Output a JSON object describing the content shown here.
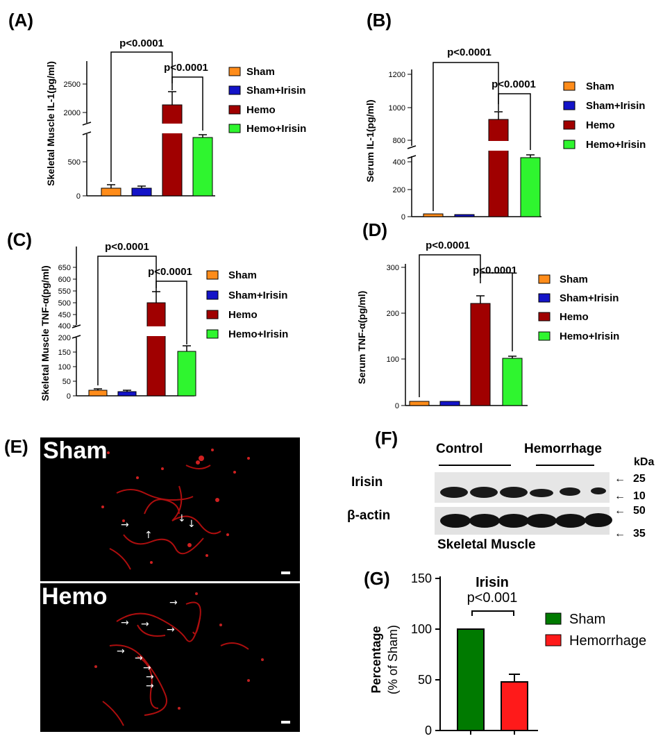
{
  "panels": {
    "A": {
      "label": "(A)",
      "ylabel": "Skeletal Muscle IL-1(pg/ml)",
      "ticks": [
        "0",
        "500",
        "2000",
        "2500"
      ],
      "p1": "p<0.0001",
      "p2": "p<0.0001"
    },
    "B": {
      "label": "(B)",
      "ylabel": "Serum IL-1(pg/ml)",
      "ticks": [
        "0",
        "200",
        "400",
        "800",
        "1000",
        "1200"
      ],
      "p1": "p<0.0001",
      "p2": "p<0.0001"
    },
    "C": {
      "label": "(C)",
      "ylabel": "Skeletal Muscle TNF-α(pg/ml)",
      "ticks": [
        "0",
        "50",
        "100",
        "150",
        "200",
        "400",
        "450",
        "500",
        "550",
        "600",
        "650"
      ],
      "p1": "p<0.0001",
      "p2": "p<0.0001"
    },
    "D": {
      "label": "(D)",
      "ylabel": "Serum TNF-α(pg/ml)",
      "ticks": [
        "0",
        "100",
        "200",
        "300"
      ],
      "p1": "p<0.0001",
      "p2": "p<0.0001"
    },
    "E": {
      "label": "(E)",
      "top": "Sham",
      "bottom": "Hemo"
    },
    "F": {
      "label": "(F)",
      "control": "Control",
      "hemorrhage": "Hemorrhage",
      "kda": "kDa",
      "irisin": "Irisin",
      "actin": "β-actin",
      "caption": "Skeletal Muscle",
      "m25": "25",
      "m10": "10",
      "m50": "50",
      "m35": "35"
    },
    "G": {
      "label": "(G)",
      "title": "Irisin",
      "p": "p<0.001",
      "ylabel1": "Percentage",
      "ylabel2": "(% of Sham)",
      "ticks": [
        "0",
        "50",
        "100",
        "150"
      ]
    }
  },
  "legend4": [
    "Sham",
    "Sham+Irisin",
    "Hemo",
    "Hemo+Irisin"
  ],
  "legend2": [
    "Sham",
    "Hemorrhage"
  ],
  "colors": {
    "sham": "#ff8c1a",
    "sham_irisin": "#1414c8",
    "hemo": "#a00000",
    "hemo_irisin": "#2ff52f",
    "g_sham": "#007a00",
    "g_hemo": "#ff1a1a"
  },
  "chart_data": [
    {
      "type": "bar",
      "panel": "A",
      "ylabel": "Skeletal Muscle IL-1(pg/ml)",
      "categories": [
        "Sham",
        "Sham+Irisin",
        "Hemo",
        "Hemo+Irisin"
      ],
      "values": [
        110,
        110,
        2150,
        870
      ],
      "errors": [
        40,
        30,
        230,
        30
      ],
      "broken_axis": [
        900,
        1900
      ]
    },
    {
      "type": "bar",
      "panel": "B",
      "ylabel": "Serum IL-1(pg/ml)",
      "categories": [
        "Sham",
        "Sham+Irisin",
        "Hemo",
        "Hemo+Irisin"
      ],
      "values": [
        22,
        18,
        925,
        440
      ],
      "errors": [
        5,
        4,
        45,
        20
      ],
      "broken_axis": [
        480,
        780
      ]
    },
    {
      "type": "bar",
      "panel": "C",
      "ylabel": "Skeletal Muscle TNF-α(pg/ml)",
      "categories": [
        "Sham",
        "Sham+Irisin",
        "Hemo",
        "Hemo+Irisin"
      ],
      "values": [
        18,
        15,
        505,
        152
      ],
      "errors": [
        4,
        3,
        45,
        18
      ],
      "broken_axis": [
        210,
        390
      ]
    },
    {
      "type": "bar",
      "panel": "D",
      "ylabel": "Serum TNF-α(pg/ml)",
      "categories": [
        "Sham",
        "Sham+Irisin",
        "Hemo",
        "Hemo+Irisin"
      ],
      "values": [
        9,
        9,
        223,
        102
      ],
      "errors": [
        2,
        2,
        17,
        5
      ],
      "ylim": [
        0,
        300
      ]
    },
    {
      "type": "bar",
      "panel": "G",
      "title": "Irisin",
      "ylabel": "Percentage (% of Sham)",
      "categories": [
        "Sham",
        "Hemorrhage"
      ],
      "values": [
        100,
        48
      ],
      "errors": [
        0,
        8
      ],
      "ylim": [
        0,
        150
      ]
    }
  ]
}
